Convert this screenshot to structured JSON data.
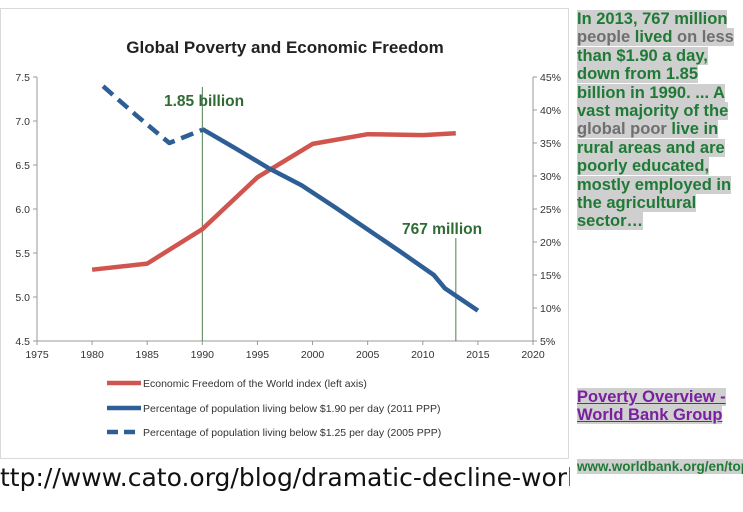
{
  "chart_data": {
    "type": "line",
    "title": "Global Poverty and Economic Freedom",
    "x_ticks": [
      "1975",
      "1980",
      "1985",
      "1990",
      "1995",
      "2000",
      "2005",
      "2010",
      "2015",
      "2020"
    ],
    "xlim": [
      1975,
      2020
    ],
    "ylim_left": [
      4.5,
      7.5
    ],
    "left_ticks": [
      "4.5",
      "5.0",
      "5.5",
      "6.0",
      "6.5",
      "7.0",
      "7.5"
    ],
    "ylim_right": [
      5,
      45
    ],
    "right_ticks": [
      "5%",
      "10%",
      "15%",
      "20%",
      "25%",
      "30%",
      "35%",
      "40%",
      "45%"
    ],
    "series": [
      {
        "name": "Economic Freedom of the World index (left axis)",
        "color": "#d0554e",
        "axis": "left",
        "style": "solid",
        "x": [
          1980,
          1985,
          1990,
          1995,
          2000,
          2005,
          2010,
          2013
        ],
        "y": [
          5.31,
          5.38,
          5.77,
          6.36,
          6.74,
          6.85,
          6.84,
          6.86
        ]
      },
      {
        "name": "Percentage of population living below $1.90 per day (2011 PPP)",
        "color": "#2e5e96",
        "axis": "right",
        "style": "solid",
        "x": [
          1990,
          1993,
          1996,
          1999,
          2002,
          2005,
          2008,
          2011,
          2012,
          2015
        ],
        "y": [
          37.1,
          34.2,
          31.2,
          28.6,
          25.3,
          21.9,
          18.5,
          15.0,
          13.0,
          9.6
        ]
      },
      {
        "name": "Percentage of population living below $1.25 per day (2005 PPP)",
        "color": "#2e5e96",
        "axis": "right",
        "style": "dashed",
        "x": [
          1981,
          1984,
          1987,
          1990
        ],
        "y": [
          43.6,
          39.2,
          35.0,
          37.0
        ]
      }
    ],
    "annotations": [
      {
        "label": "1.85 billion",
        "x": 1990
      },
      {
        "label": "767 million",
        "x": 2013
      }
    ]
  },
  "url_caption": "ttp://www.cato.org/blog/dramatic-decline-world-p",
  "panel": {
    "text": [
      {
        "t": "In 2013, 767 "
      },
      {
        "t": "million "
      },
      {
        "t": "people",
        "dim": true
      },
      {
        "t": " li"
      },
      {
        "t": "v"
      },
      {
        "t": "ed "
      },
      {
        "t": "on less",
        "dim": true
      },
      {
        "t": " than "
      },
      {
        "t": "$1.90 a day,"
      },
      {
        "t": " down from 1.85 billion in 1990. ... A vast majority of "
      },
      {
        "t": "the "
      },
      {
        "t": "global poor",
        "dim": true
      },
      {
        "t": " li"
      },
      {
        "t": "ve in rural areas and are poorly educated, mostly employed in the agricultural sector…"
      }
    ],
    "link": "Poverty Overview - World Bank Group",
    "url": "www.worldbank.org/en/topic/poverty/overview"
  }
}
